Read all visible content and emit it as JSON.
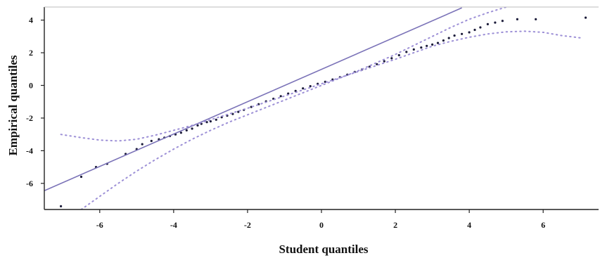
{
  "chart_data": {
    "type": "scatter",
    "title": "",
    "xlabel": "Student quantiles",
    "ylabel": "Empirical quantiles",
    "xlim": [
      -7.5,
      7.5
    ],
    "ylim": [
      -7.6,
      4.8
    ],
    "xticks": [
      -6,
      -4,
      -2,
      0,
      2,
      4,
      6
    ],
    "yticks": [
      -6,
      -4,
      -2,
      0,
      2,
      4
    ],
    "grid": false,
    "colors": {
      "line": "#7b73b8",
      "envelope": "#9c8fd6",
      "points": "#1c1c3a",
      "axis": "#222222"
    },
    "series": [
      {
        "role": "points",
        "x": [
          -7.05,
          -6.5,
          -6.1,
          -5.8,
          -5.3,
          -5.0,
          -4.85,
          -4.6,
          -4.4,
          -4.25,
          -4.1,
          -3.95,
          -3.8,
          -3.65,
          -3.5,
          -3.35,
          -3.25,
          -3.1,
          -3.0,
          -2.85,
          -2.7,
          -2.55,
          -2.4,
          -2.25,
          -2.1,
          -1.9,
          -1.7,
          -1.5,
          -1.3,
          -1.1,
          -0.9,
          -0.7,
          -0.5,
          -0.3,
          -0.1,
          0.1,
          0.3,
          0.5,
          0.7,
          0.9,
          1.1,
          1.3,
          1.5,
          1.7,
          1.9,
          2.1,
          2.3,
          2.5,
          2.7,
          2.85,
          3.0,
          3.15,
          3.3,
          3.45,
          3.6,
          3.8,
          4.0,
          4.15,
          4.3,
          4.5,
          4.7,
          4.9,
          5.3,
          5.8,
          7.15
        ],
        "y": [
          -7.4,
          -5.6,
          -5.0,
          -4.8,
          -4.2,
          -3.9,
          -3.6,
          -3.4,
          -3.3,
          -3.2,
          -3.1,
          -3.0,
          -2.9,
          -2.75,
          -2.65,
          -2.45,
          -2.35,
          -2.25,
          -2.2,
          -2.1,
          -1.95,
          -1.85,
          -1.75,
          -1.62,
          -1.5,
          -1.32,
          -1.15,
          -0.98,
          -0.82,
          -0.66,
          -0.5,
          -0.34,
          -0.18,
          -0.05,
          0.1,
          0.22,
          0.36,
          0.5,
          0.66,
          0.82,
          0.98,
          1.14,
          1.3,
          1.48,
          1.66,
          1.85,
          2.05,
          2.2,
          2.32,
          2.42,
          2.5,
          2.6,
          2.75,
          2.9,
          3.05,
          3.15,
          3.25,
          3.4,
          3.55,
          3.75,
          3.85,
          3.95,
          4.05,
          4.05,
          4.15
        ]
      },
      {
        "role": "reference-line",
        "x": [
          -7.5,
          3.8
        ],
        "y": [
          -6.45,
          4.75
        ]
      },
      {
        "role": "upper-envelope",
        "x": [
          -7.05,
          -6.5,
          -6.0,
          -5.5,
          -5.0,
          -4.5,
          -4.0,
          -3.5,
          -3.0,
          -2.5,
          -2.0,
          -1.0,
          0.0,
          1.0,
          2.0,
          2.5,
          3.0,
          3.5,
          4.0,
          4.5,
          5.0,
          5.5,
          6.0,
          6.5,
          7.05
        ],
        "y": [
          -3.0,
          -3.2,
          -3.35,
          -3.4,
          -3.3,
          -3.05,
          -2.75,
          -2.45,
          -2.1,
          -1.75,
          -1.4,
          -0.65,
          0.1,
          0.85,
          1.6,
          2.0,
          2.4,
          2.7,
          2.95,
          3.15,
          3.28,
          3.32,
          3.25,
          3.05,
          2.9
        ]
      },
      {
        "role": "lower-envelope",
        "x": [
          -6.5,
          -6.0,
          -5.5,
          -5.0,
          -4.5,
          -4.0,
          -3.5,
          -3.0,
          -2.5,
          -2.0,
          -1.0,
          0.0,
          1.0,
          2.0,
          2.5,
          3.0,
          3.5,
          4.0,
          4.5,
          5.0
        ],
        "y": [
          -7.6,
          -6.8,
          -6.0,
          -5.25,
          -4.55,
          -3.9,
          -3.3,
          -2.75,
          -2.25,
          -1.8,
          -0.9,
          0.0,
          0.9,
          1.9,
          2.45,
          3.0,
          3.55,
          4.05,
          4.45,
          4.8
        ]
      }
    ]
  }
}
